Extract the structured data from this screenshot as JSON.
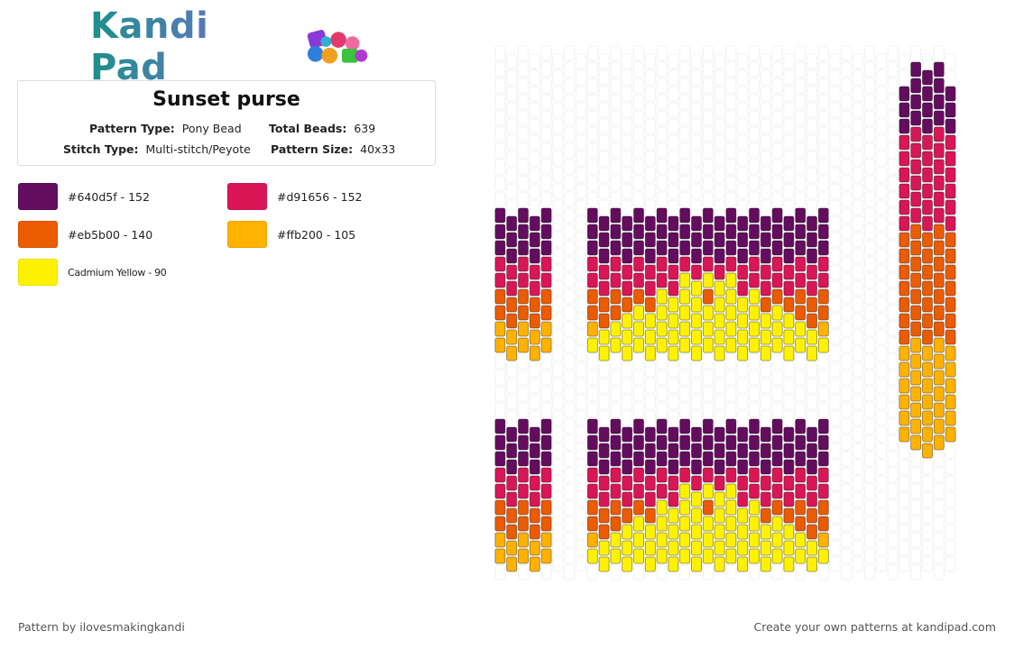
{
  "brand": {
    "logo_text": "Kandi Pad",
    "logo_icon": "bead-pile-icon"
  },
  "pattern": {
    "title": "Sunset purse",
    "pattern_type_label": "Pattern Type:",
    "pattern_type_value": "Pony Bead",
    "total_beads_label": "Total Beads:",
    "total_beads_value": "639",
    "stitch_type_label": "Stitch Type:",
    "stitch_type_value": "Multi-stitch/Peyote",
    "pattern_size_label": "Pattern Size:",
    "pattern_size_value": "40x33"
  },
  "colors": [
    {
      "label": "#640d5f - 152",
      "hex": "#640d5f"
    },
    {
      "label": "#d91656 - 152",
      "hex": "#d91656"
    },
    {
      "label": "#eb5b00 - 140",
      "hex": "#eb5b00"
    },
    {
      "label": "#ffb200 - 105",
      "hex": "#ffb200"
    },
    {
      "label": "Cadmium Yellow - 90",
      "hex": "#fff200"
    }
  ],
  "footer": {
    "credit": "Pattern by ilovesmakingkandi",
    "cta": "Create your own patterns at kandipad.com"
  }
}
